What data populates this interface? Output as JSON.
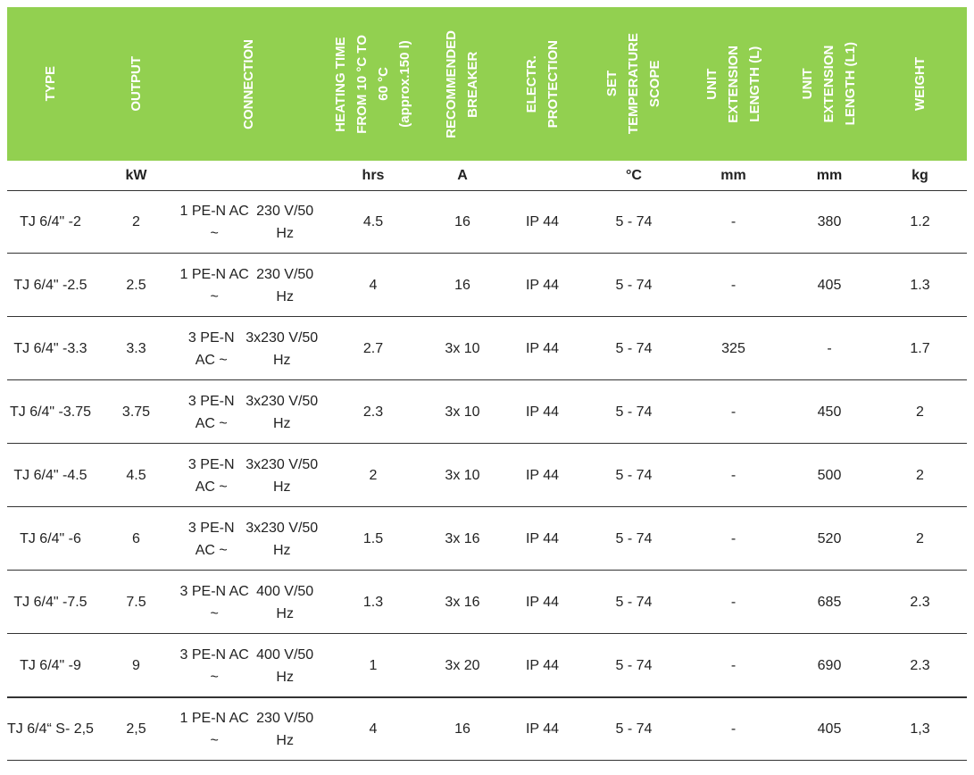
{
  "table": {
    "header": [
      [
        "TYPE"
      ],
      [
        "OUTPUT"
      ],
      [
        "CONNECTION"
      ],
      [
        "HEATING TIME",
        "FROM 10 °C TO",
        "60 °C",
        "(approx.150 l)"
      ],
      [
        "RECOMMENDED",
        "BREAKER"
      ],
      [
        "ELECTR.",
        "PROTECTION"
      ],
      [
        "SET",
        "TEMPERATURE",
        "SCOPE"
      ],
      [
        "UNIT",
        "EXTENSION",
        "LENGTH (L)"
      ],
      [
        "UNIT",
        "EXTENSION",
        "LENGTH (L1)"
      ],
      [
        "WEIGHT"
      ]
    ],
    "units": [
      null,
      "kW",
      null,
      "hrs",
      "A",
      null,
      "°C",
      "mm",
      "mm",
      "kg"
    ],
    "rows": [
      [
        [
          "TJ 6/4\" -",
          "2"
        ],
        "2",
        [
          "1 PE-N AC ~",
          "230 V/50 Hz"
        ],
        "4.5",
        "16",
        "IP 44",
        "5 - 74",
        "-",
        "380",
        "1.2"
      ],
      [
        [
          "TJ 6/4\" -",
          "2.5"
        ],
        "2.5",
        [
          "1 PE-N AC ~",
          "230 V/50 Hz"
        ],
        "4",
        "16",
        "IP 44",
        "5 - 74",
        "-",
        "405",
        "1.3"
      ],
      [
        [
          "TJ 6/4\" -",
          "3.3"
        ],
        "3.3",
        [
          "3 PE-N AC ~",
          "3x230 V/50 Hz"
        ],
        "2.7",
        "3x 10",
        "IP 44",
        "5 - 74",
        "325",
        "-",
        "1.7"
      ],
      [
        [
          "TJ 6/4\" -",
          "3.75"
        ],
        "3.75",
        [
          "3 PE-N AC ~",
          "3x230 V/50 Hz"
        ],
        "2.3",
        "3x 10",
        "IP 44",
        "5 - 74",
        "-",
        "450",
        "2"
      ],
      [
        [
          "TJ 6/4\" -",
          "4.5"
        ],
        "4.5",
        [
          "3 PE-N AC ~",
          "3x230 V/50 Hz"
        ],
        "2",
        "3x 10",
        "IP 44",
        "5 - 74",
        "-",
        "500",
        "2"
      ],
      [
        [
          "TJ 6/4\" -",
          "6"
        ],
        "6",
        [
          "3 PE-N AC ~",
          "3x230 V/50 Hz"
        ],
        "1.5",
        "3x 16",
        "IP 44",
        "5 - 74",
        "-",
        "520",
        "2"
      ],
      [
        [
          "TJ 6/4\" -",
          "7.5"
        ],
        "7.5",
        [
          "3 PE-N AC ~",
          "400 V/50 Hz"
        ],
        "1.3",
        "3x 16",
        "IP 44",
        "5 - 74",
        "-",
        "685",
        "2.3"
      ],
      [
        [
          "TJ 6/4\" -",
          "9"
        ],
        "9",
        [
          "3 PE-N AC ~",
          "400 V/50 Hz"
        ],
        "1",
        "3x 20",
        "IP 44",
        "5 - 74",
        "-",
        "690",
        "2.3"
      ],
      [
        [
          "TJ 6/4“ S",
          "- 2,5"
        ],
        "2,5",
        [
          "1 PE-N AC ~",
          "230 V/50 Hz"
        ],
        "4",
        "16",
        "IP 44",
        "5 - 74",
        "-",
        "405",
        "1,3"
      ]
    ]
  }
}
